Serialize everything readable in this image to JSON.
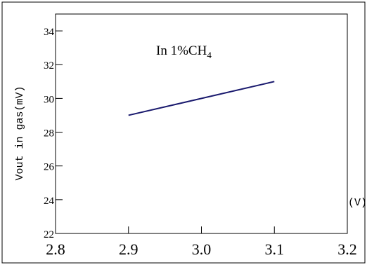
{
  "chart_data": {
    "type": "line",
    "annotation": {
      "prefix": "In 1%CH",
      "subscript": "4"
    },
    "ylabel": "Vout in gas(mV)",
    "xlabel": "(V)",
    "xlim": [
      2.8,
      3.2
    ],
    "ylim": [
      22,
      35
    ],
    "x_ticks": [
      {
        "value": 2.8,
        "label": "2.8"
      },
      {
        "value": 2.9,
        "label": "2.9"
      },
      {
        "value": 3.0,
        "label": "3.0"
      },
      {
        "value": 3.1,
        "label": "3.1"
      },
      {
        "value": 3.2,
        "label": "3.2"
      }
    ],
    "y_ticks": [
      {
        "value": 22,
        "label": "22"
      },
      {
        "value": 24,
        "label": "24"
      },
      {
        "value": 26,
        "label": "26"
      },
      {
        "value": 28,
        "label": "28"
      },
      {
        "value": 30,
        "label": "30"
      },
      {
        "value": 32,
        "label": "32"
      },
      {
        "value": 34,
        "label": "34"
      }
    ],
    "grid": false,
    "legend": "none",
    "series": [
      {
        "color": "#1a1a6e",
        "x": [
          2.9,
          3.1
        ],
        "y": [
          29.0,
          31.0
        ]
      }
    ]
  }
}
